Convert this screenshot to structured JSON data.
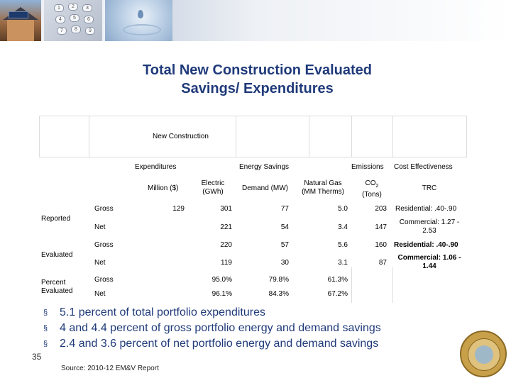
{
  "title_line1": "Total New Construction Evaluated",
  "title_line2": "Savings/ Expenditures",
  "table": {
    "group_header": "New Construction",
    "col_expenditures": "Expenditures",
    "col_energy_savings": "Energy Savings",
    "col_emissions": "Emissions",
    "col_cost_effectiveness": "Cost Effectiveness",
    "sub_million": "Million ($)",
    "sub_electric_1": "Electric",
    "sub_electric_2": "(GWh)",
    "sub_demand": "Demand (MW)",
    "sub_gas_1": "Natural Gas",
    "sub_gas_2": "(MM Therms)",
    "sub_co2_main": "CO",
    "sub_co2_sub": "2",
    "sub_co2_2": "(Tons)",
    "sub_trc": "TRC",
    "row_groups": {
      "reported": "Reported",
      "evaluated": "Evaluated",
      "percent_1": "Percent",
      "percent_2": "Evaluated"
    },
    "rows": {
      "rep_gross": {
        "label": "Gross",
        "expenditure": "129",
        "electric": "301",
        "demand": "77",
        "gas": "5.0",
        "co2": "203",
        "trc": "Residential: .40-.90"
      },
      "rep_net": {
        "label": "Net",
        "electric": "221",
        "demand": "54",
        "gas": "3.4",
        "co2": "147",
        "trc_1": "Commercial: 1.27 -",
        "trc_2": "2.53"
      },
      "eval_gross": {
        "label": "Gross",
        "electric": "220",
        "demand": "57",
        "gas": "5.6",
        "co2": "160",
        "trc": "Residential: .40-.90"
      },
      "eval_net": {
        "label": "Net",
        "electric": "119",
        "demand": "30",
        "gas": "3.1",
        "co2": "87",
        "trc_1": "Commercial: 1.06 -",
        "trc_2": "1.44"
      },
      "pct_gross": {
        "label": "Gross",
        "electric": "95.0%",
        "demand": "79.8%",
        "gas": "61.3%"
      },
      "pct_net": {
        "label": "Net",
        "electric": "96.1%",
        "demand": "84.3%",
        "gas": "67.2%"
      }
    }
  },
  "bullets": [
    "5.1 percent of total portfolio expenditures",
    "4 and 4.4 percent of gross portfolio energy and demand savings",
    "2.4 and 3.6 percent of net portfolio energy and demand savings"
  ],
  "bullet_marker": "§",
  "page_number": "35",
  "source": "Source: 2010-12 EM&V Report",
  "phone_keys": [
    "1",
    "2",
    "3",
    "4",
    "5",
    "6",
    "7",
    "8",
    "9"
  ],
  "colors": {
    "title": "#1f3a7a",
    "bullets": "#1f3a7a"
  },
  "icons": {
    "banner_house": "house-solar-photo",
    "banner_phone": "phone-keypad-photo",
    "banner_water": "water-drop-photo",
    "seal": "california-state-seal"
  }
}
